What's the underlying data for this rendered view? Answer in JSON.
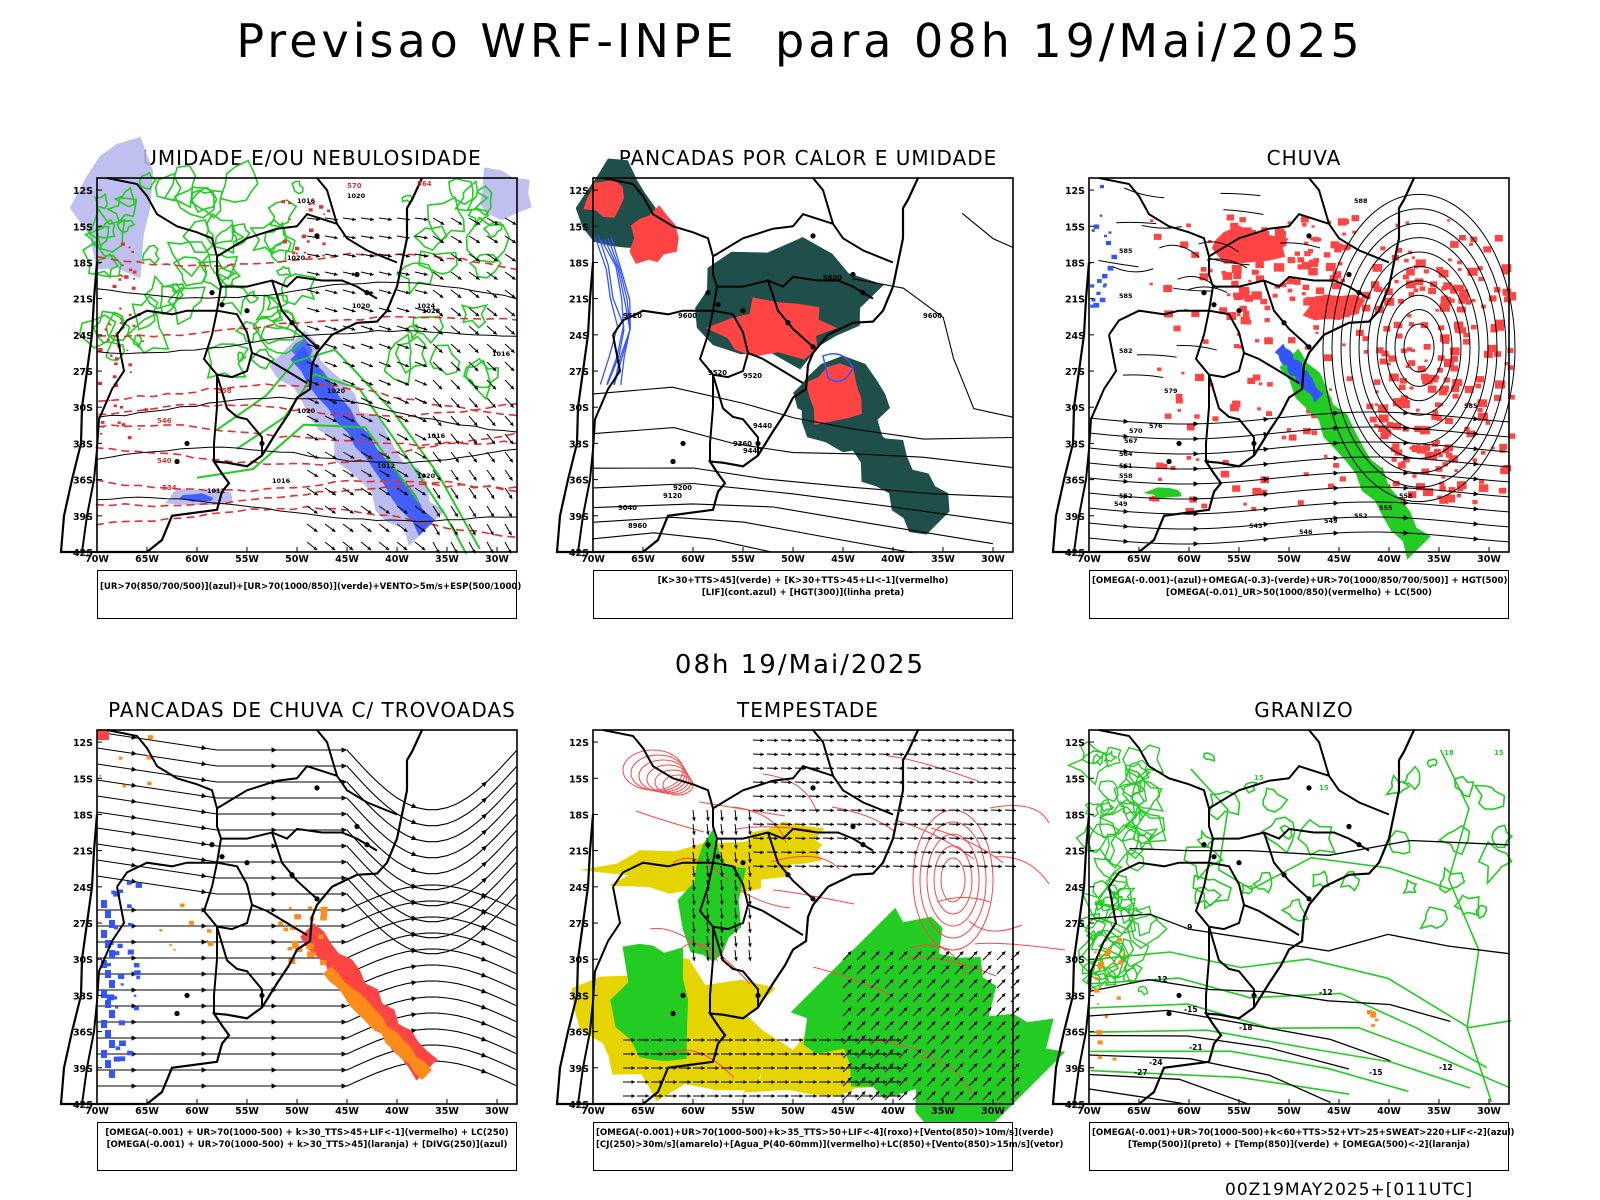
{
  "main_title": "Previsao WRF-INPE  para 08h 19/Mai/2025",
  "mid_title": "08h 19/Mai/2025",
  "footer": "00Z19MAY2025+[011UTC]",
  "axes": {
    "lat_labels": [
      "12S",
      "15S",
      "18S",
      "21S",
      "24S",
      "27S",
      "30S",
      "33S",
      "36S",
      "39S",
      "42S"
    ],
    "lon_labels": [
      "70W",
      "65W",
      "60W",
      "55W",
      "50W",
      "45W",
      "40W",
      "35W",
      "30W"
    ]
  },
  "colors": {
    "frame": "#000000",
    "green": "#22cc22",
    "red": "#ff4444",
    "blue": "#3355ff",
    "lavender": "#b8b8ee",
    "darkteal": "#1f4f4a",
    "orange": "#ff8c1a",
    "yellow": "#e6d400"
  },
  "panels": [
    {
      "title": "UMIDADE E/OU NEBULOSIDADE",
      "legend": [
        "[UR>70(850/700/500)](azul)+[UR>70(1000/850)](verde)+VENTO>5m/s+ESP(500/1000)"
      ],
      "contour_labels": [
        "1020",
        "1016",
        "1020",
        "1020",
        "1024",
        "1028",
        "1016",
        "1020",
        "1020",
        "1012",
        "1016",
        "1020",
        "1016",
        "1012",
        "570",
        "564",
        "558",
        "546",
        "540",
        "534"
      ]
    },
    {
      "title": "PANCADAS POR CALOR E UMIDADE",
      "legend": [
        "[K>30+TTS>45](verde) + [K>30+TTS>45+LI<-1](vermelho)",
        "[LIF](cont.azul) + [HGT(300)](linha preta)"
      ],
      "contour_labels": [
        "9600",
        "9600",
        "9600",
        "9520",
        "9520",
        "9440",
        "9440",
        "9360",
        "9200",
        "9120",
        "9040",
        "8960",
        "9520"
      ]
    },
    {
      "title": "CHUVA",
      "legend": [
        "[OMEGA(-0.001)-(azul)+OMEGA(-0.3)-(verde)+UR>70(1000/850/700/500)] + HGT(500)",
        "[OMEGA(-0.01)_UR>50(1000/850)(vermelho) + LC(500)"
      ],
      "contour_labels": [
        "588",
        "585",
        "585",
        "582",
        "579",
        "576",
        "570",
        "567",
        "564",
        "561",
        "558",
        "552",
        "549",
        "543",
        "546",
        "549",
        "552",
        "555",
        "558",
        "585"
      ]
    },
    {
      "title": "PANCADAS DE CHUVA C/ TROVOADAS",
      "legend": [
        "[OMEGA(-0.001) + UR>70(1000-500) + k>30_TTS>45+LIF<-1](vermelho) + LC(250)",
        "[OMEGA(-0.001) + UR>70(1000-500) + k>30_TTS>45](laranja) + [DIVG(250)](azul)"
      ]
    },
    {
      "title": "TEMPESTADE",
      "legend": [
        "[OMEGA(-0.001)+UR>70(1000-500)+k>35_TTS>50+LIF<-4](roxo)+[Vento(850)>10m/s](verde)",
        "[CJ(250)>30m/s](amarelo)+[Agua_P(40-60mm)](vermelho)+LC(850)+[Vento(850)>15m/s](vetor)"
      ]
    },
    {
      "title": "GRANIZO",
      "legend": [
        "[OMEGA(-0.001)+UR>70(1000-500)+k<60+TTS>52+VT>25+SWEAT>220+LIF<-2](azul)",
        "[Temp(500)](preto) + [Temp(850)](verde) + [OMEGA(500)<-2](laranja)"
      ],
      "contour_labels": [
        "-9",
        "-12",
        "-12",
        "-15",
        "-18",
        "-21",
        "-24",
        "-27",
        "-15",
        "-12",
        "15",
        "15",
        "18",
        "15"
      ]
    }
  ]
}
